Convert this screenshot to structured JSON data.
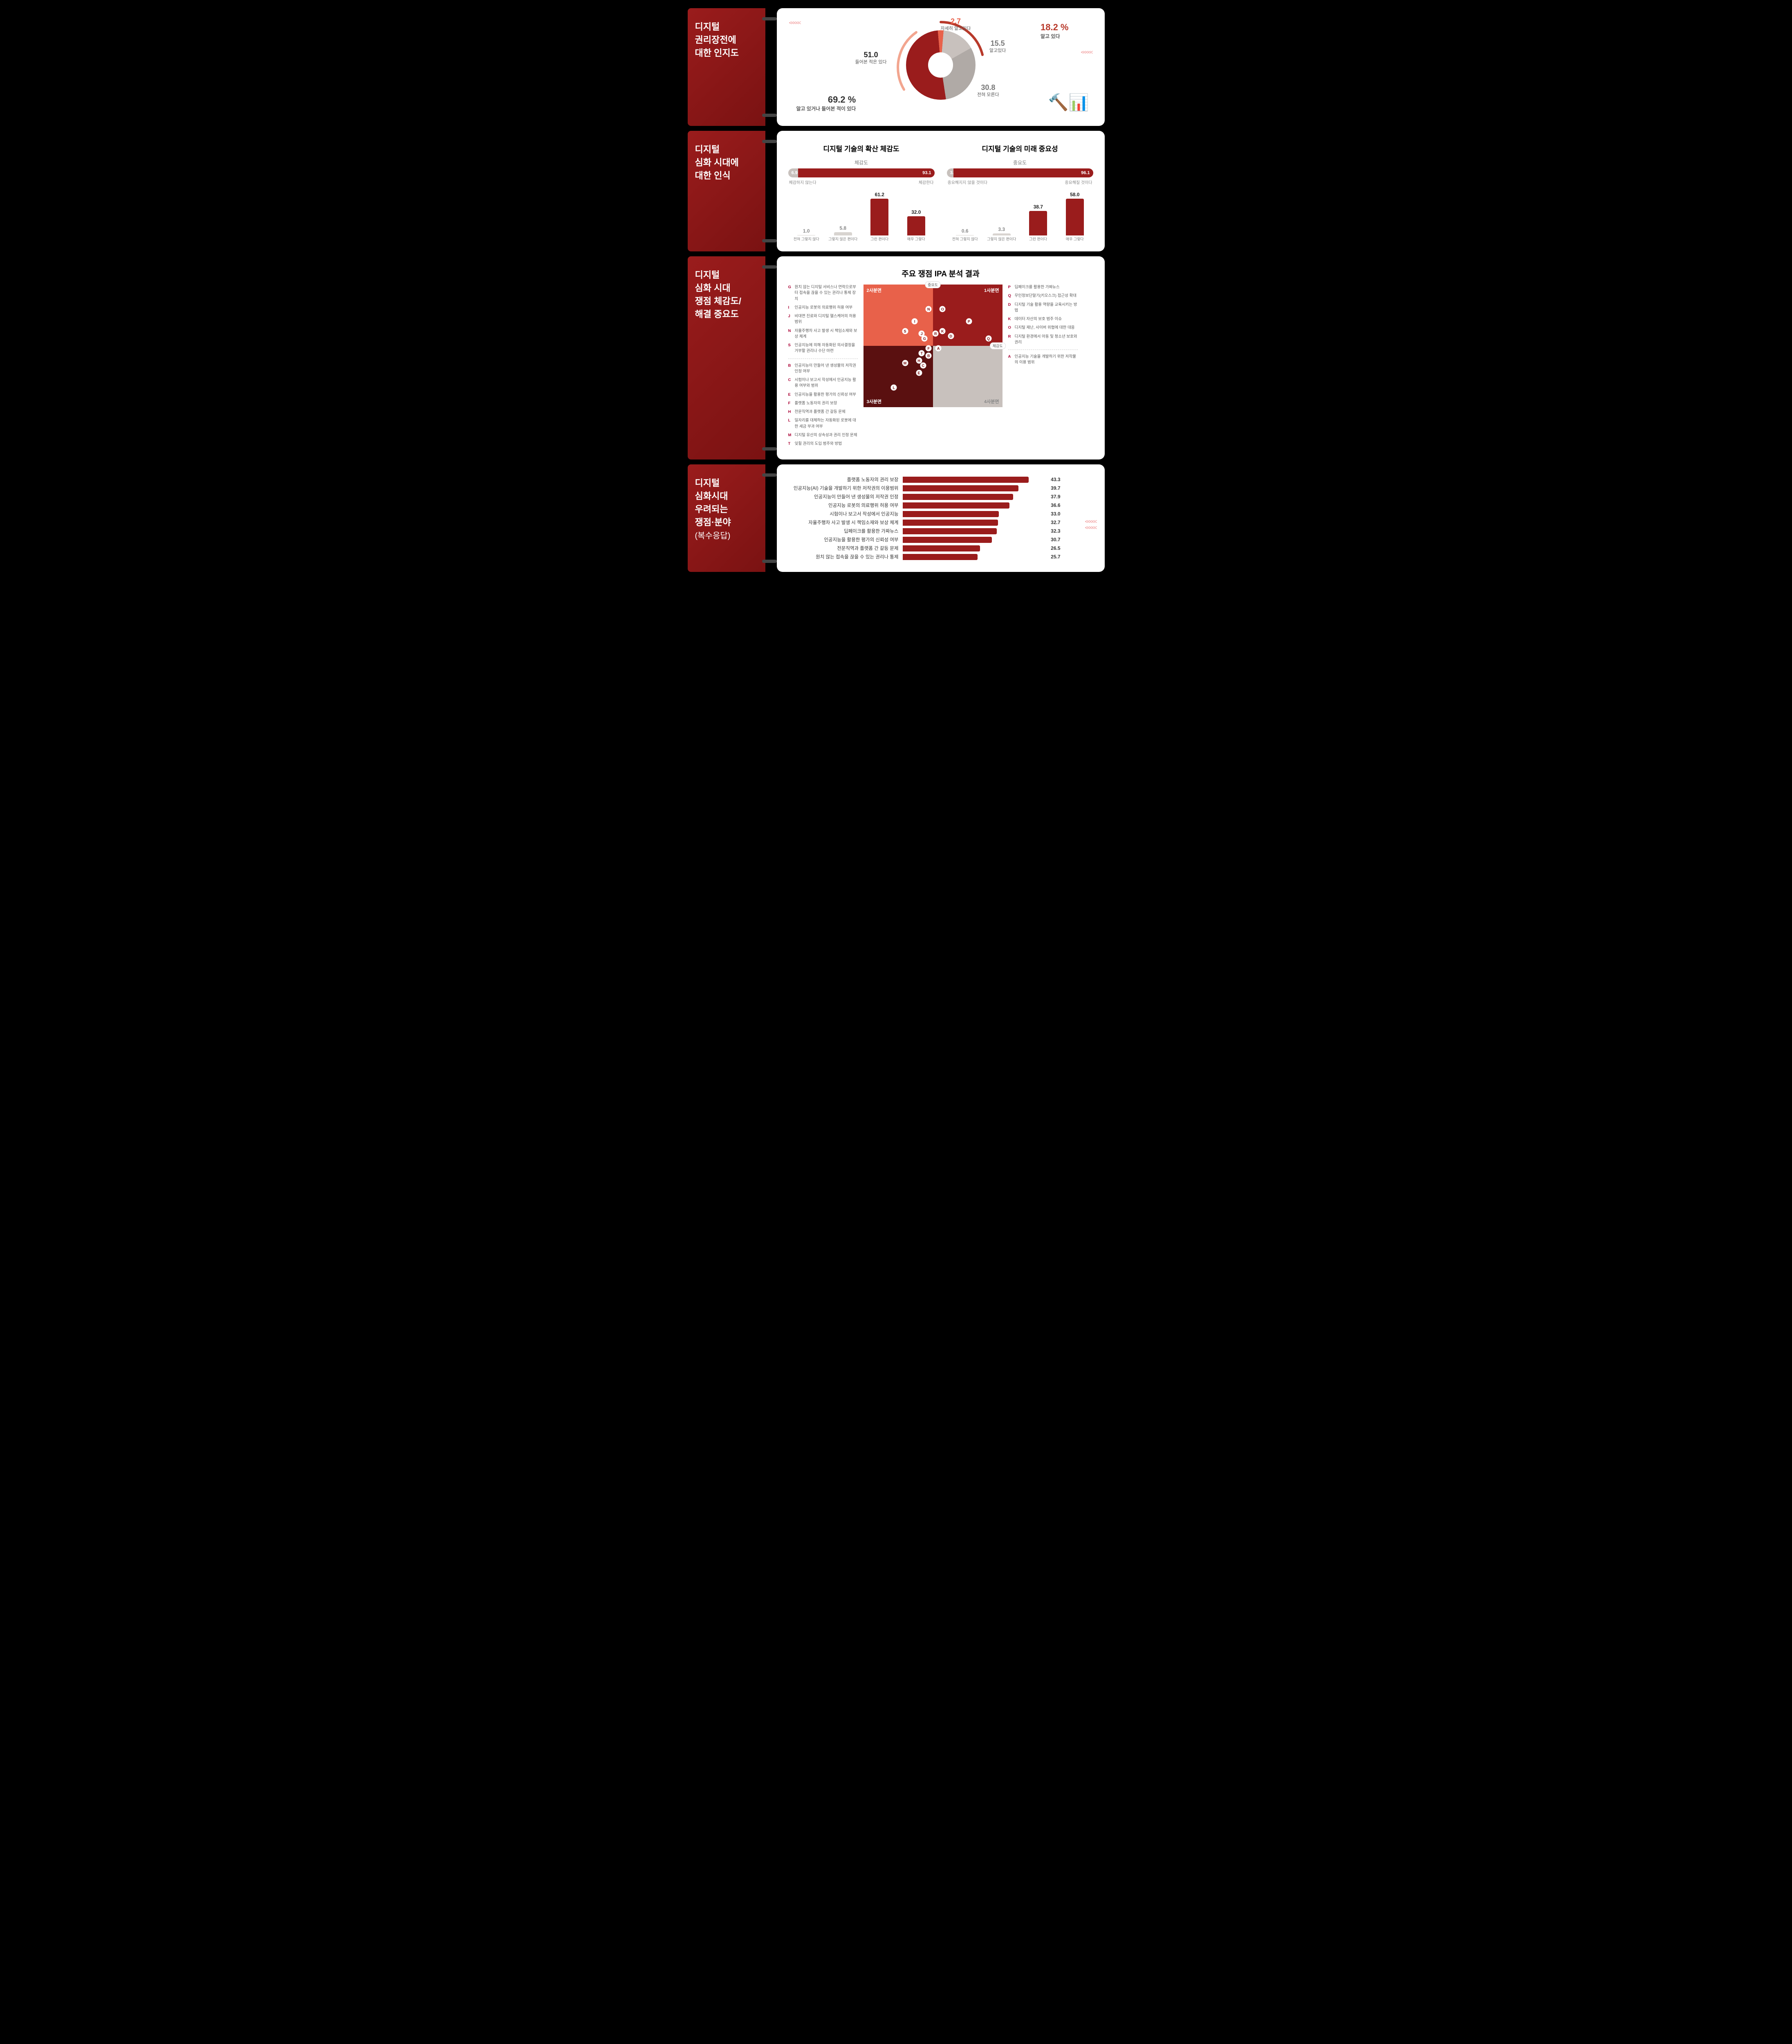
{
  "colors": {
    "dark_red": "#9a1c1c",
    "darker_red": "#5a1010",
    "coral": "#e8614a",
    "pale_coral": "#f2a58f",
    "grey": "#b8b3af",
    "light_grey": "#d8d4d0"
  },
  "section1": {
    "title": "디지털\n권리장전에\n대한 인지도",
    "donut": {
      "slices": [
        {
          "label": "자세히 알고있다",
          "value": 2.7,
          "color": "#e8614a"
        },
        {
          "label": "알고있다",
          "value": 15.5,
          "color": "#c8c1bd"
        },
        {
          "label": "전혀 모른다",
          "value": 30.8,
          "color": "#b0aaa6"
        },
        {
          "label": "들어본 적은 있다",
          "value": 51.0,
          "color": "#9a1c1c"
        }
      ],
      "callout_right": {
        "value": "18.2 %",
        "label": "알고 있다",
        "color": "#b8392a"
      },
      "callout_left": {
        "value": "69.2 %",
        "label": "알고 있거나 들어본 적이 있다",
        "color": "#333"
      }
    }
  },
  "section2": {
    "title": "디지털\n심화 시대에\n대한 인식",
    "left": {
      "title": "디지털 기술의 확산 체감도",
      "sub": "체감도",
      "hbar": {
        "left_val": 6.9,
        "left_lbl": "체감하지 않는다",
        "right_val": 93.1,
        "right_lbl": "체감한다"
      },
      "bars": [
        {
          "label": "전혀 그렇지 않다",
          "value": 1.0,
          "color": "#d8d4d0"
        },
        {
          "label": "그렇지 않은 편이다",
          "value": 5.8,
          "color": "#d8d4d0"
        },
        {
          "label": "그런 편이다",
          "value": 61.2,
          "color": "#9a1c1c"
        },
        {
          "label": "매우 그렇다",
          "value": 32.0,
          "color": "#9a1c1c"
        }
      ]
    },
    "right": {
      "title": "디지털 기술의 미래 중요성",
      "sub": "중요도",
      "hbar": {
        "left_val": 3.9,
        "left_lbl": "중요해지지 않을 것이다",
        "right_val": 96.1,
        "right_lbl": "중요해질 것이다"
      },
      "bars": [
        {
          "label": "전혀 그렇지 않다",
          "value": 0.6,
          "color": "#d8d4d0"
        },
        {
          "label": "그렇지 않은 편이다",
          "value": 3.3,
          "color": "#d8d4d0"
        },
        {
          "label": "그런 편이다",
          "value": 38.7,
          "color": "#9a1c1c"
        },
        {
          "label": "매우 그렇다",
          "value": 58.0,
          "color": "#9a1c1c"
        }
      ]
    }
  },
  "section3": {
    "title": "디지털\n심화 시대\n쟁점 체감도/\n해결 중요도",
    "chart_title": "주요 쟁점 IPA 분석 결과",
    "quads": {
      "q1": "1사분면",
      "q2": "2사분면",
      "q3": "3사분면",
      "q4": "4사분면"
    },
    "axis": {
      "x": "체감도",
      "y": "중요도"
    },
    "legend_left_top": [
      {
        "k": "G",
        "t": "원치 않는 디지털 서비스나 연락으로부터 접속을 끊을 수 있는 권리나 통제 장치"
      },
      {
        "k": "I",
        "t": "인공지능 로봇의 의료행위 허용 여부"
      },
      {
        "k": "J",
        "t": "비대면 진료와 디지털 헬스케어의 허용 범위"
      },
      {
        "k": "N",
        "t": "자율주행차 사고 발생 시 책임소재와 보상 체계"
      },
      {
        "k": "S",
        "t": "인공지능에 의해 자동화된 의사결정을 거부할 권리나 수단 마련"
      }
    ],
    "legend_left_bottom": [
      {
        "k": "B",
        "t": "인공지능이 만들어 낸 생성물의 저작권 인정 여부"
      },
      {
        "k": "C",
        "t": "시험이나 보고서 작성에서 인공지능 활용 여부와 범위"
      },
      {
        "k": "E",
        "t": "인공지능을 활용한 평가의 신뢰성 여부"
      },
      {
        "k": "F",
        "t": "플랫폼 노동자의 권리 보장"
      },
      {
        "k": "H",
        "t": "전문직역과 플랫폼 간 갈등 문제"
      },
      {
        "k": "L",
        "t": "일자리를 대체하는 자동화된 로봇에 대한 세금 부과 여부"
      },
      {
        "k": "M",
        "t": "디지털 유산의 상속성과 권리 인정 문제"
      },
      {
        "k": "T",
        "t": "잊힐 권리의 도입 범주와 방법"
      }
    ],
    "legend_right_top": [
      {
        "k": "P",
        "t": "딥페이크를 활용한 가짜뉴스"
      },
      {
        "k": "Q",
        "t": "무인정보단말기(키오스크) 접근성 확대"
      },
      {
        "k": "D",
        "t": "디지털 기술 활용 역량을 교육시키는 방법"
      },
      {
        "k": "K",
        "t": "데이터 자산의 보호 범주 이슈"
      },
      {
        "k": "O",
        "t": "디지털 재난, 사이버 위협에 대한 대응"
      },
      {
        "k": "R",
        "t": "디지털 환경에서 아동 및 청소년 보호와 권리"
      }
    ],
    "legend_right_bottom": [
      {
        "k": "A",
        "t": "인공지능 기술을 개발하기 위한 저작물의 이용 범위"
      }
    ],
    "points": [
      {
        "k": "N",
        "x": 47,
        "y": 20
      },
      {
        "k": "O",
        "x": 57,
        "y": 20
      },
      {
        "k": "I",
        "x": 37,
        "y": 30
      },
      {
        "k": "S",
        "x": 30,
        "y": 38
      },
      {
        "k": "J",
        "x": 42,
        "y": 40
      },
      {
        "k": "G",
        "x": 44,
        "y": 44
      },
      {
        "k": "R",
        "x": 52,
        "y": 40
      },
      {
        "k": "K",
        "x": 57,
        "y": 38
      },
      {
        "k": "D",
        "x": 63,
        "y": 42
      },
      {
        "k": "P",
        "x": 76,
        "y": 30
      },
      {
        "k": "Q",
        "x": 90,
        "y": 44
      },
      {
        "k": "F",
        "x": 47,
        "y": 52
      },
      {
        "k": "A",
        "x": 54,
        "y": 52
      },
      {
        "k": "T",
        "x": 42,
        "y": 56
      },
      {
        "k": "B",
        "x": 47,
        "y": 58
      },
      {
        "k": "H",
        "x": 40,
        "y": 62
      },
      {
        "k": "C",
        "x": 43,
        "y": 66
      },
      {
        "k": "M",
        "x": 30,
        "y": 64
      },
      {
        "k": "E",
        "x": 40,
        "y": 72
      },
      {
        "k": "L",
        "x": 22,
        "y": 84
      }
    ]
  },
  "section4": {
    "title_lines": [
      "디지털",
      "심화시대",
      "우려되는",
      "쟁점·분야"
    ],
    "title_sub": "(복수응답)",
    "max": 50,
    "bars": [
      {
        "label": "플랫폼 노동자의 권리 보장",
        "value": 43.3
      },
      {
        "label": "인공지능(AI) 기술을 개발하기 위한 저작권의 이용범위",
        "value": 39.7
      },
      {
        "label": "인공지능이 만들어 낸 생성물의 저작권 인정",
        "value": 37.9
      },
      {
        "label": "인공지능 로봇의 의료행위 허용 여부",
        "value": 36.6
      },
      {
        "label": "시험이나 보고서 작성에서 인공지능",
        "value": 33.0
      },
      {
        "label": "자율주행차 사고 발생 시 책임소재와 보상 체계",
        "value": 32.7
      },
      {
        "label": "딥페이크를 활용한 가짜뉴스",
        "value": 32.3
      },
      {
        "label": "인공지능을 활용한 평가의 신뢰성 여부",
        "value": 30.7
      },
      {
        "label": "전문직역과 플랫폼 간 갈등 문제",
        "value": 26.5
      },
      {
        "label": "원치 않는 접속을 끊을 수 있는 권리나 통제",
        "value": 25.7
      }
    ]
  }
}
